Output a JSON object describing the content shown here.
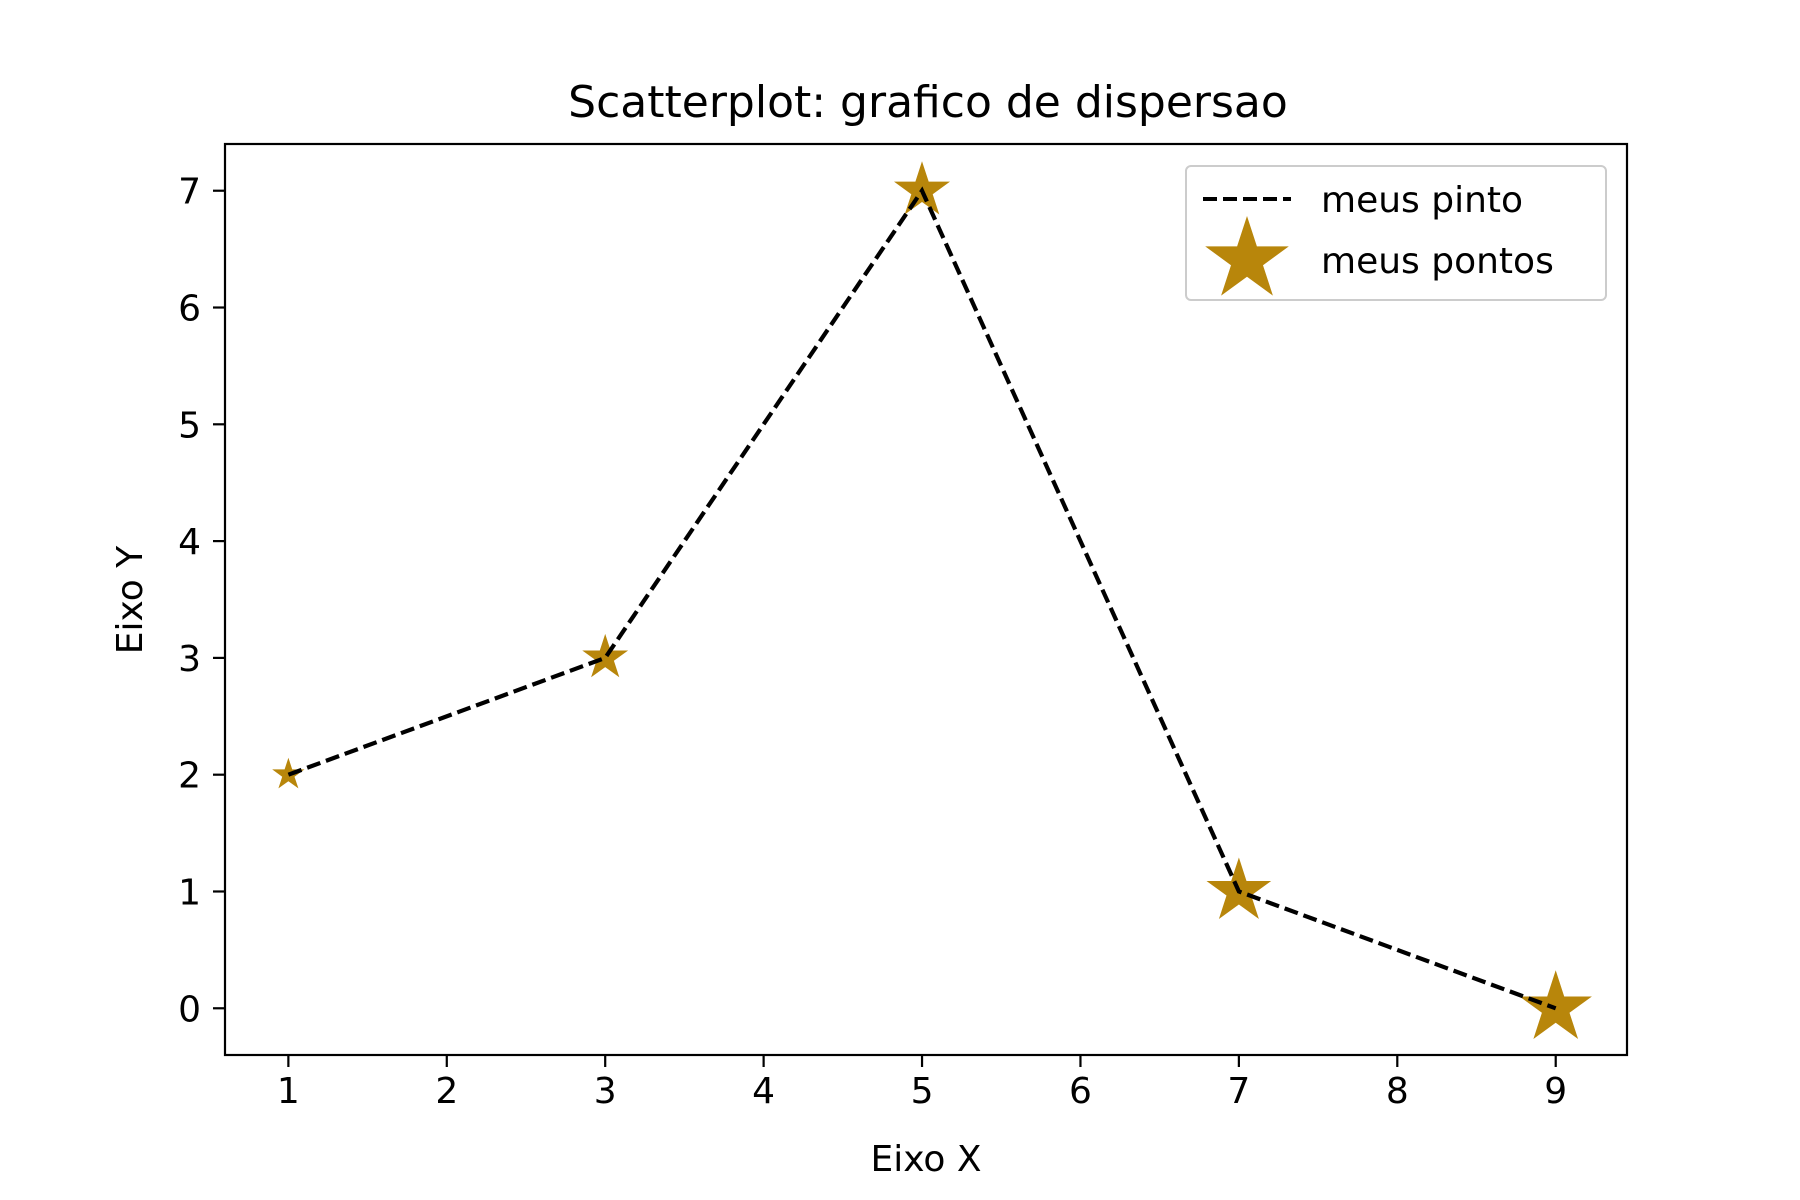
{
  "chart_data": {
    "type": "scatter",
    "title": "Scatterplot: grafico de dispersao",
    "xlabel": "Eixo X",
    "ylabel": "Eixo Y",
    "xlim": [
      0.6,
      9.45
    ],
    "ylim": [
      -0.4,
      7.4
    ],
    "xticks": [
      1,
      2,
      3,
      4,
      5,
      6,
      7,
      8,
      9
    ],
    "yticks": [
      0,
      1,
      2,
      3,
      4,
      5,
      6,
      7
    ],
    "grid": false,
    "legend_position": "top-right",
    "series": [
      {
        "name": "meus pinto",
        "kind": "line",
        "style": "dashed",
        "color": "#000000",
        "x": [
          1,
          3,
          5,
          7,
          9
        ],
        "y": [
          2,
          3,
          7,
          1,
          0
        ]
      },
      {
        "name": "meus pontos",
        "kind": "scatter",
        "marker": "star",
        "color": "#b8860b",
        "x": [
          1,
          3,
          5,
          7,
          9
        ],
        "y": [
          2,
          3,
          7,
          1,
          0
        ],
        "sizes": [
          1,
          2,
          3,
          4,
          5
        ]
      }
    ]
  }
}
